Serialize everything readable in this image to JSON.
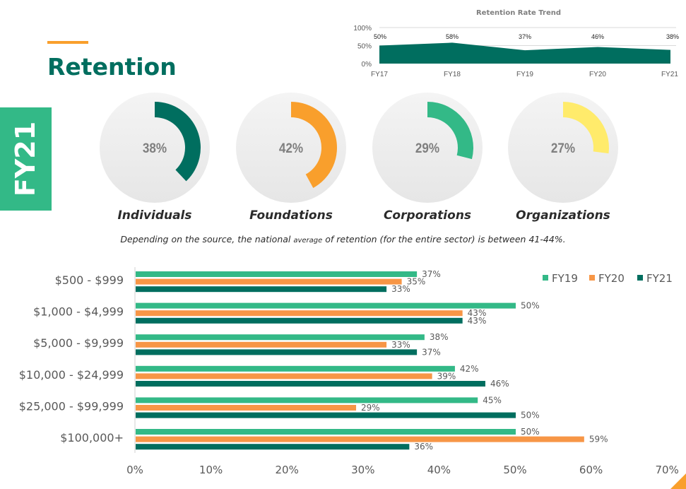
{
  "header": {
    "title": "Retention",
    "badge": "FY21"
  },
  "colors": {
    "dark_green": "#006e5f",
    "orange": "#f99f2c",
    "bar_orange": "#f79646",
    "green": "#33b987",
    "yellow": "#ffeb6b",
    "circle_bg": "#ececec"
  },
  "note": {
    "part1": "Depending on the source, the national ",
    "small": "average",
    "part2": " of retention (for the entire sector) is between 41-44%."
  },
  "chart_data": [
    {
      "type": "area",
      "title": "Retention Rate Trend",
      "categories": [
        "FY17",
        "FY18",
        "FY19",
        "FY20",
        "FY21"
      ],
      "values": [
        50,
        58,
        37,
        46,
        38
      ],
      "data_labels": [
        "50%",
        "58%",
        "37%",
        "46%",
        "38%"
      ],
      "yticks": [
        "0%",
        "50%",
        "100%"
      ],
      "ylim": [
        0,
        100
      ],
      "grid": true
    },
    {
      "type": "pie",
      "subtype": "donut-gauge",
      "items": [
        {
          "label": "Individuals",
          "value": 38,
          "value_label": "38%",
          "color": "#006e5f"
        },
        {
          "label": "Foundations",
          "value": 42,
          "value_label": "42%",
          "color": "#f99f2c"
        },
        {
          "label": "Corporations",
          "value": 29,
          "value_label": "29%",
          "color": "#33b987"
        },
        {
          "label": "Organizations",
          "value": 27,
          "value_label": "27%",
          "color": "#ffeb6b"
        }
      ]
    },
    {
      "type": "bar",
      "orientation": "horizontal",
      "categories": [
        "$500 - $999",
        "$1,000 - $4,999",
        "$5,000 - $9,999",
        "$10,000 - $24,999",
        "$25,000 - $99,999",
        "$100,000+"
      ],
      "series": [
        {
          "name": "FY19",
          "color": "#33b987",
          "values": [
            37,
            50,
            38,
            42,
            45,
            50
          ],
          "labels": [
            "37%",
            "50%",
            "38%",
            "42%",
            "45%",
            "50%"
          ]
        },
        {
          "name": "FY20",
          "color": "#f79646",
          "values": [
            35,
            43,
            33,
            39,
            29,
            59
          ],
          "labels": [
            "35%",
            "43%",
            "33%",
            "39%",
            "29%",
            "59%"
          ]
        },
        {
          "name": "FY21",
          "color": "#006e5f",
          "values": [
            33,
            43,
            37,
            46,
            50,
            36
          ],
          "labels": [
            "33%",
            "43%",
            "37%",
            "46%",
            "50%",
            "36%"
          ]
        }
      ],
      "xticks": [
        "0%",
        "10%",
        "20%",
        "30%",
        "40%",
        "50%",
        "60%",
        "70%"
      ],
      "xlim": [
        0,
        70
      ],
      "legend": "top-right",
      "grid": false
    }
  ]
}
